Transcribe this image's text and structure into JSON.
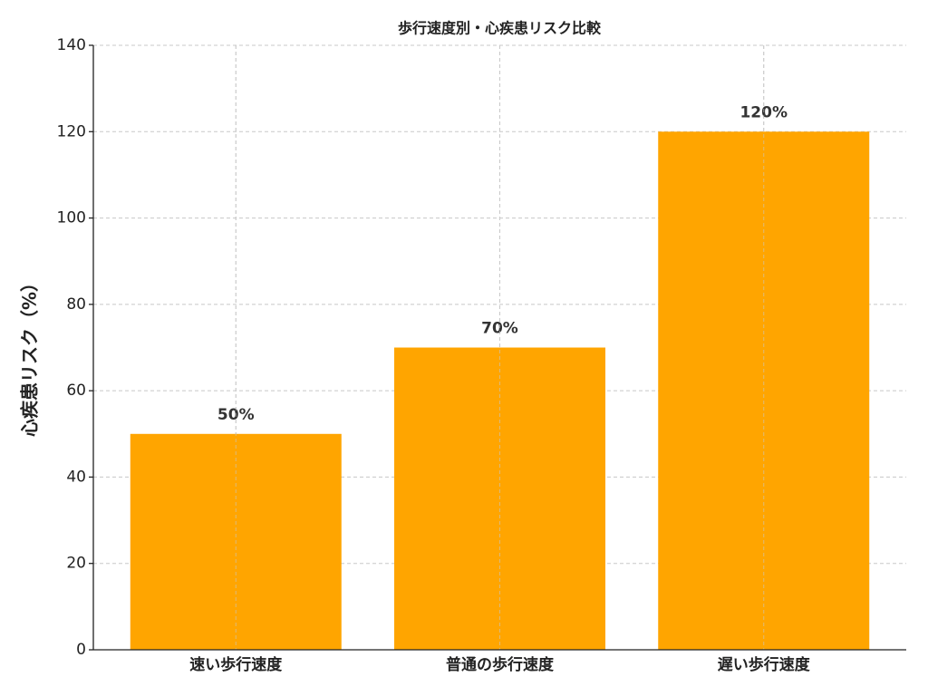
{
  "chart_data": {
    "type": "bar",
    "title": "歩行速度別・心疾患リスク比較",
    "y_label": "心疾患リスク（%）",
    "categories": [
      "速い歩行速度",
      "普通の歩行速度",
      "遅い歩行速度"
    ],
    "values": [
      50,
      70,
      120
    ],
    "value_labels": [
      "50%",
      "70%",
      "120%"
    ],
    "color": "#ffa500",
    "ylim": [
      0,
      140
    ],
    "yticks": [
      0,
      20,
      40,
      60,
      80,
      100,
      120,
      140
    ],
    "grid": true
  }
}
